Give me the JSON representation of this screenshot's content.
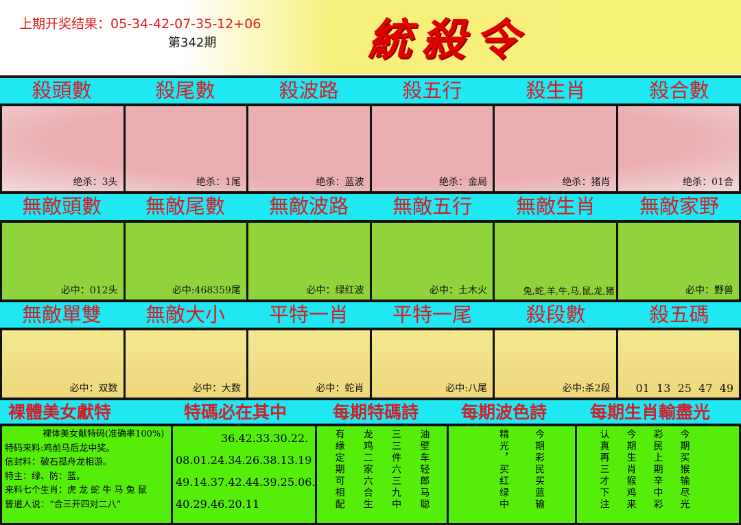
{
  "header": {
    "last_result_label": "上期开奖结果：",
    "last_result": "05-34-42-07-35-12+06",
    "issue": "第342期",
    "logo": "統殺令"
  },
  "row1": {
    "titles": [
      "殺頭數",
      "殺尾數",
      "殺波路",
      "殺五行",
      "殺生肖",
      "殺合數"
    ],
    "values": [
      "绝杀：3头",
      "绝杀：1尾",
      "绝杀：蓝波",
      "绝杀：金局",
      "绝杀：猪肖",
      "绝杀：01合"
    ]
  },
  "row2": {
    "titles": [
      "無敵頭數",
      "無敵尾數",
      "無敵波路",
      "無敵五行",
      "無敵生肖",
      "無敵家野"
    ],
    "values": [
      "必中：012头",
      "必中:468359尾",
      "必中：绿红波",
      "必中：土木火",
      "兔,蛇,羊,牛,马,鼠,龙,猪",
      "必中：野兽"
    ]
  },
  "row3": {
    "titles": [
      "無敵單雙",
      "無敵大小",
      "平特一肖",
      "平特一尾",
      "殺段數",
      "殺五碼"
    ],
    "values": [
      "必中：双数",
      "必中：大数",
      "必中：蛇肖",
      "必中:八尾",
      "必中:杀2段",
      "01  13  25  47  49"
    ]
  },
  "row4": {
    "titles": [
      "裸體美女獻特",
      "特碼必在其中",
      "每期特碼詩",
      "每期波色詩",
      "每期生肖輸盡光"
    ]
  },
  "beauty": {
    "lines": [
      "裸体美女献特码(准确率100%)",
      "特码来料:鸡前马后龙中奖。",
      "信封料：破石孤舟龙相游。",
      "特主：绿、防：蓝。",
      "来料七个生肖：虎 龙 蛇 牛 马 兔 鼠",
      "曾道人说：“合三开四对二八”"
    ]
  },
  "numbers": [
    "36.42.33.30.22.",
    "08.01.24.34.26.38.13.19",
    "49.14.37.42.44.39.25.06.",
    "40.29.46.20.11"
  ],
  "poem1": [
    "有缘定期可相配",
    "龙鸡二家六合生",
    "三三件六三九中",
    "油壁车轻郎马聪"
  ],
  "poem2": [
    "精光，买红绿中",
    "今期彩民买蓝输"
  ],
  "poem3": [
    "认真再三才下注",
    "今期生肖猴鸡来",
    "彩民上期辛中彩",
    "今期买猴输尽光"
  ],
  "colors": {
    "header_bg": "#1fe8f2",
    "title_red": "#d0202a",
    "band1": "#eab0b0",
    "band2": "#8fd43a",
    "band3": "#f0dc80",
    "bottom": "#55ee0a"
  }
}
